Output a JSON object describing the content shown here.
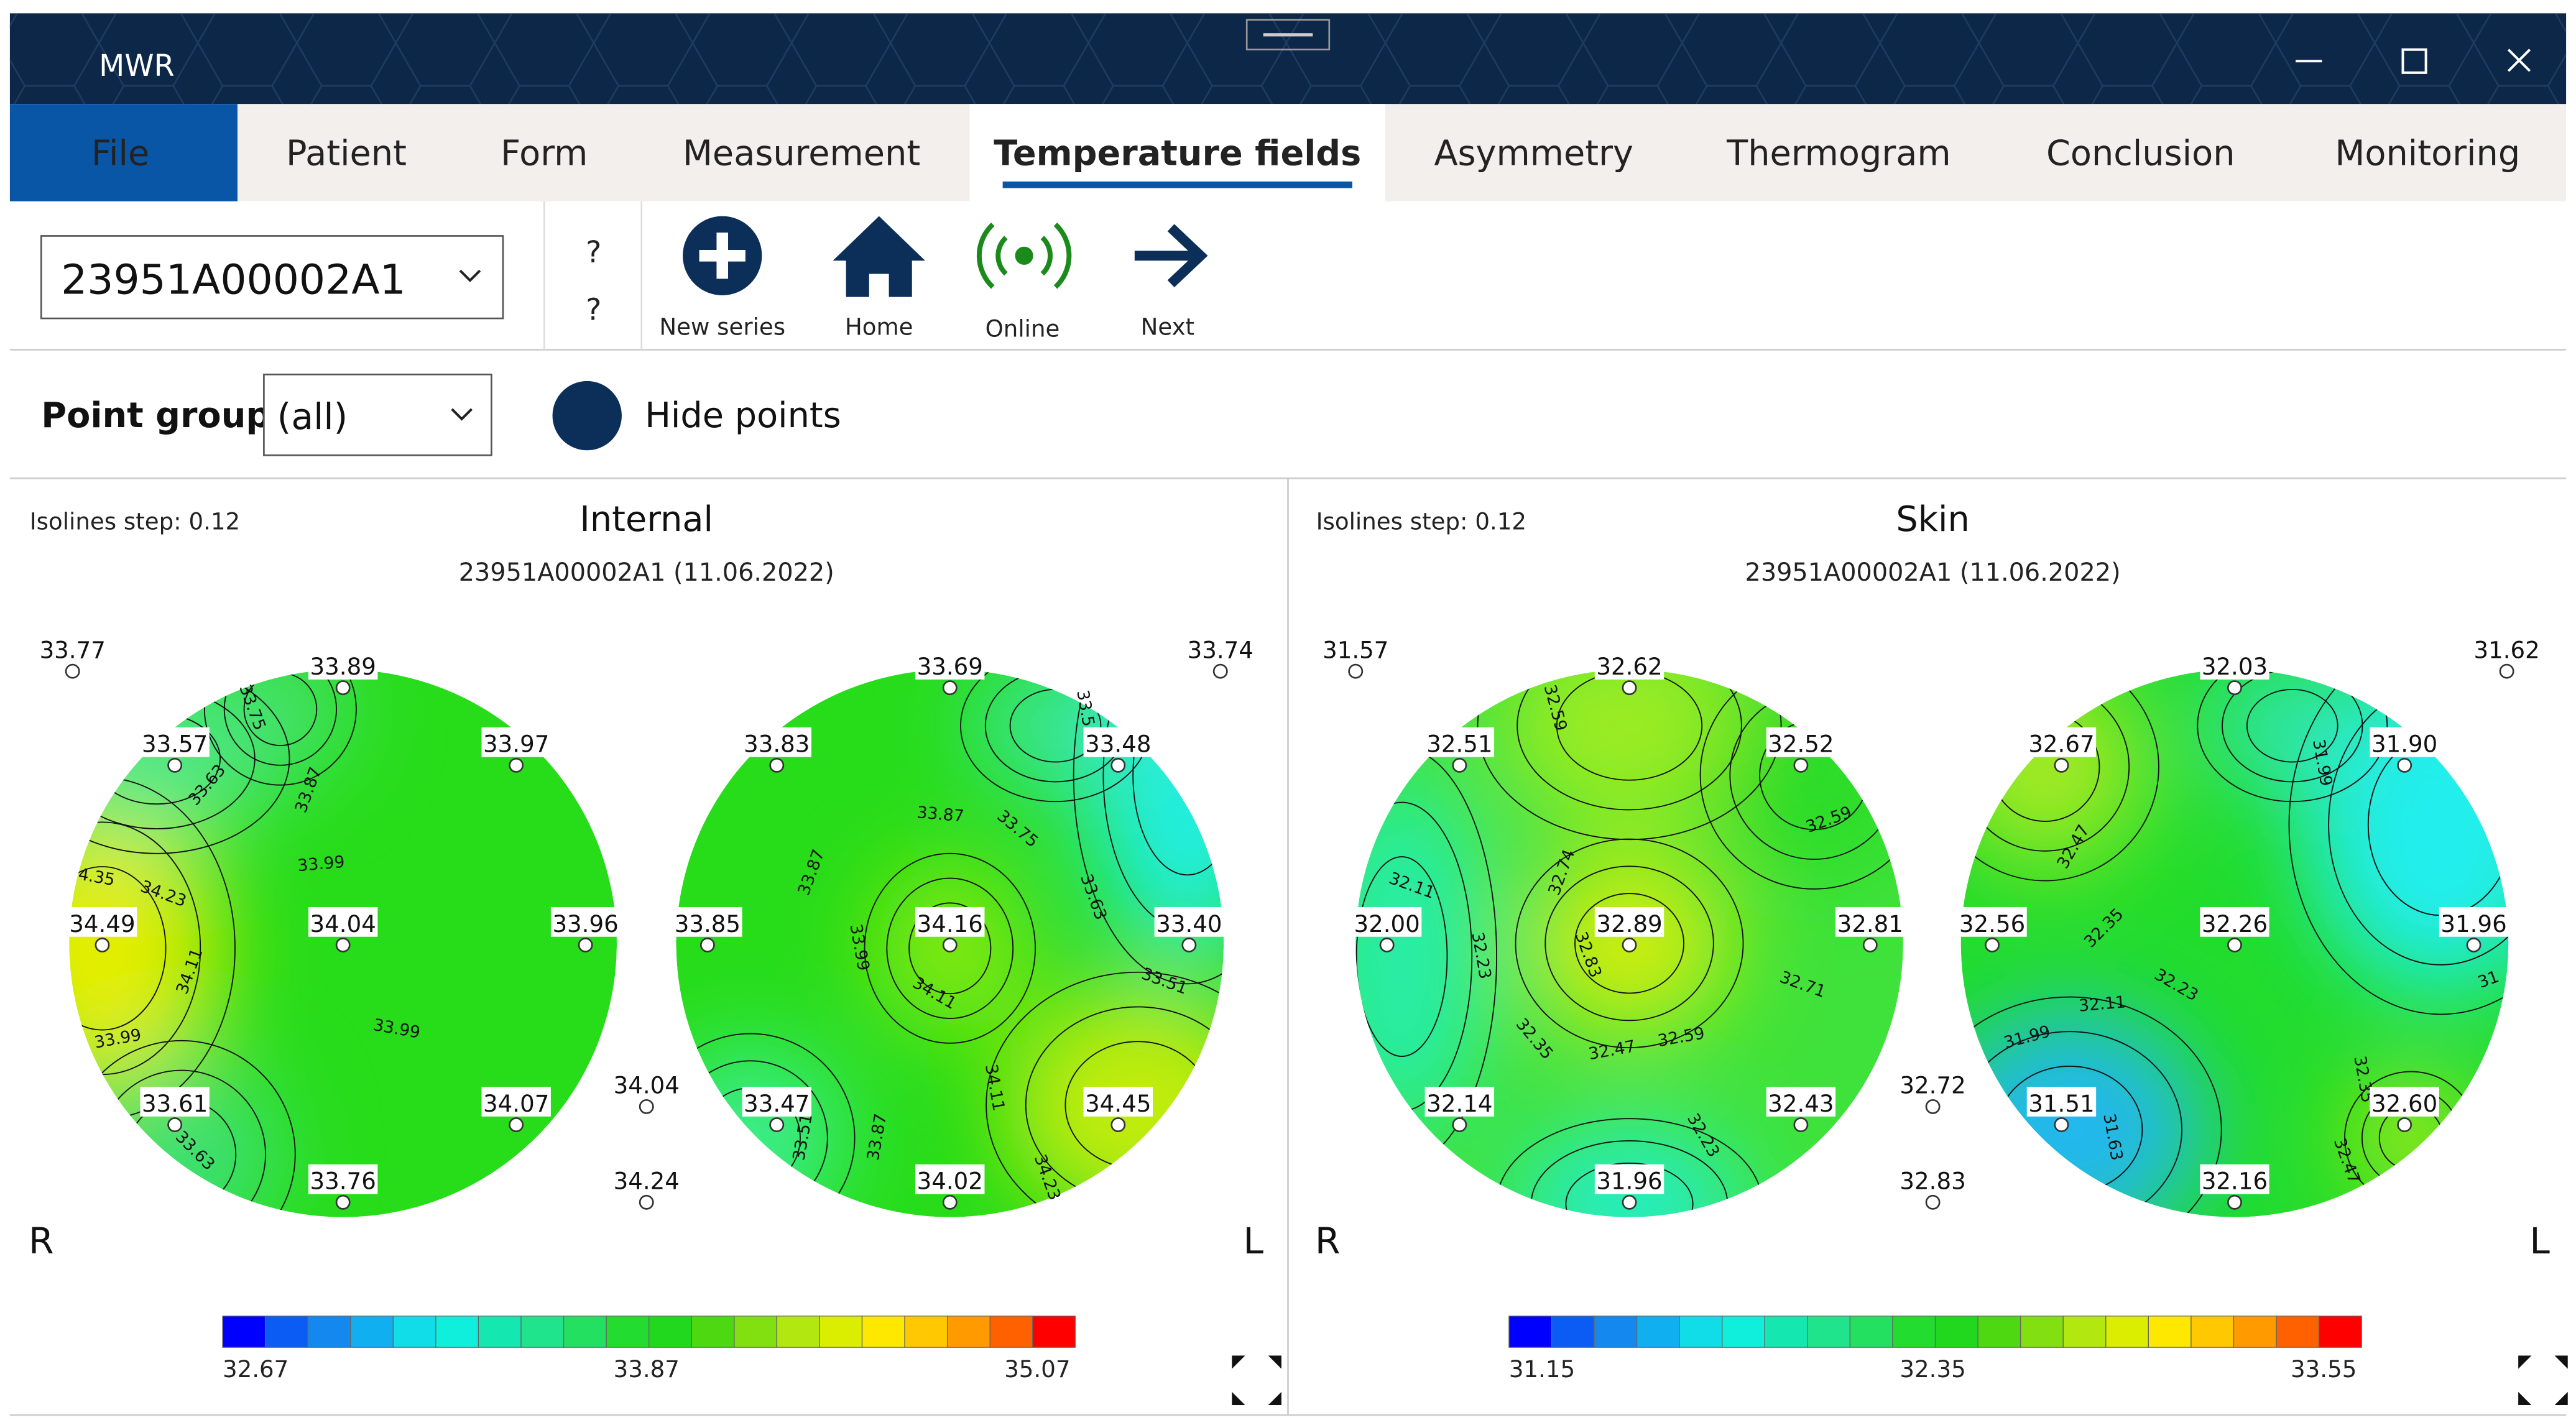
{
  "window": {
    "title": "MWR"
  },
  "tabs": [
    "File",
    "Patient",
    "Form",
    "Measurement",
    "Temperature fields",
    "Asymmetry",
    "Thermogram",
    "Conclusion",
    "Monitoring"
  ],
  "toolbar": {
    "series": "23951A00002A1",
    "help": [
      "?",
      "?"
    ],
    "buttons": [
      "New series",
      "Home",
      "Online",
      "Next"
    ]
  },
  "filter": {
    "label": "Point group",
    "value": "(all)",
    "toggle": "Hide points"
  },
  "panels": [
    {
      "step": "Isolines step: 0.12",
      "title": "Internal",
      "subtitle": "23951A00002A1 (11.06.2022)",
      "points": [
        "33.77",
        "33.89",
        "33.57",
        "33.97",
        "34.49",
        "34.04",
        "33.96",
        "33.61",
        "34.07",
        "33.76",
        "33.69",
        "33.74",
        "33.83",
        "33.48",
        "33.85",
        "34.16",
        "33.40",
        "33.47",
        "34.45",
        "34.02",
        "34.04",
        "34.24"
      ],
      "isolines": [
        "33.75",
        "33.63",
        "33.87",
        "4.35",
        "34.23",
        "33.99",
        "34.11",
        "33.99",
        "33.99",
        "33.63",
        "33.87",
        "33.75",
        "33.87",
        "33.5",
        "33.63",
        "33.99",
        "34.11",
        "33.51",
        "34.11",
        "33.51",
        "33.87",
        "34.23"
      ],
      "scale": [
        "32.67",
        "33.87",
        "35.07"
      ],
      "side_left": "R",
      "side_right": "L"
    },
    {
      "step": "Isolines step: 0.12",
      "title": "Skin",
      "subtitle": "23951A00002A1 (11.06.2022)",
      "points": [
        "31.57",
        "32.62",
        "32.51",
        "32.52",
        "32.00",
        "32.89",
        "32.81",
        "32.14",
        "32.43",
        "31.96",
        "32.72",
        "32.83",
        "32.03",
        "31.62",
        "32.67",
        "31.90",
        "32.56",
        "32.26",
        "31.96",
        "31.51",
        "32.60",
        "32.16"
      ],
      "isolines": [
        "32.59",
        "32.59",
        "32.74",
        "32.11",
        "32.83",
        "32.71",
        "32.23",
        "32.35",
        "32.47",
        "32.59",
        "32.23",
        "31.99",
        "32.47",
        "32.35",
        "32.23",
        "32.11",
        "31.99",
        "31.63",
        "32.35",
        "32.47",
        "31"
      ],
      "scale": [
        "31.15",
        "32.35",
        "33.55"
      ],
      "side_left": "R",
      "side_right": "L"
    }
  ]
}
